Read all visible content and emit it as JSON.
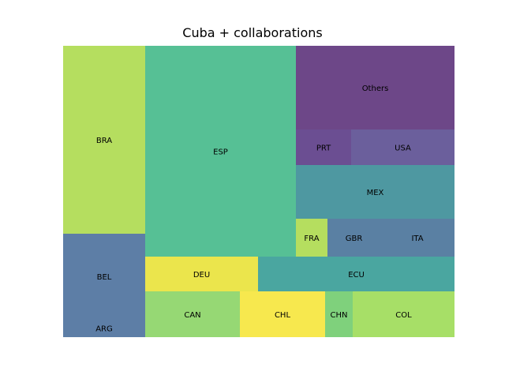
{
  "chart_data": {
    "type": "treemap",
    "title": "Cuba + collaborations",
    "items": [
      {
        "label": "BRA",
        "value": 24.5,
        "color": "#b5de5f"
      },
      {
        "label": "BEL",
        "value": 11.2,
        "color": "#5d7ea6"
      },
      {
        "label": "ARG",
        "value": 2.3,
        "color": "#5d7ea6"
      },
      {
        "label": "ESP",
        "value": 50.5,
        "color": "#56c095"
      },
      {
        "label": "DEU",
        "value": 8.3,
        "color": "#ebe54c"
      },
      {
        "label": "CAN",
        "value": 7.0,
        "color": "#96d874"
      },
      {
        "label": "CHL",
        "value": 6.3,
        "color": "#f7e84e"
      },
      {
        "label": "CHN",
        "value": 2.0,
        "color": "#7fd17c"
      },
      {
        "label": "COL",
        "value": 7.6,
        "color": "#a7df67"
      },
      {
        "label": "ECU",
        "value": 14.4,
        "color": "#4aa6a0"
      },
      {
        "label": "FRA",
        "value": 2.0,
        "color": "#b5de5f"
      },
      {
        "label": "GBR",
        "value": 3.3,
        "color": "#5a80a3"
      },
      {
        "label": "ITA",
        "value": 4.8,
        "color": "#5a80a3"
      },
      {
        "label": "MEX",
        "value": 13.5,
        "color": "#4e98a1"
      },
      {
        "label": "PRT",
        "value": 4.6,
        "color": "#6b4e92"
      },
      {
        "label": "USA",
        "value": 8.8,
        "color": "#6b5f9c"
      },
      {
        "label": "Others",
        "value": 21.1,
        "color": "#6d4788"
      }
    ]
  }
}
